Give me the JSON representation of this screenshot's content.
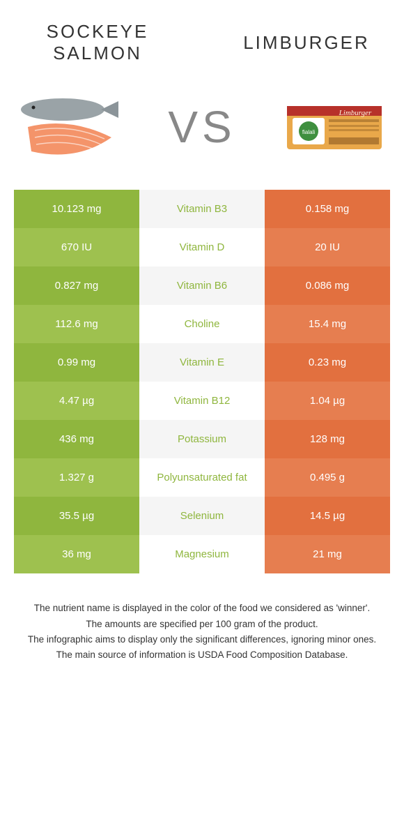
{
  "colors": {
    "left_a": "#8fb63e",
    "left_b": "#9ec14f",
    "mid_a": "#f5f5f5",
    "mid_b": "#ffffff",
    "right_a": "#e2703f",
    "right_b": "#e67e50",
    "nutrient_text_left": "#8fb63e",
    "nutrient_text_right": "#e2703f",
    "title_text": "#333333"
  },
  "header": {
    "left_title": "Sockeye salmon",
    "right_title": "Limburger",
    "vs": "VS"
  },
  "rows": [
    {
      "nutrient": "Vitamin B3",
      "left": "10.123 mg",
      "right": "0.158 mg",
      "winner": "left"
    },
    {
      "nutrient": "Vitamin D",
      "left": "670 IU",
      "right": "20 IU",
      "winner": "left"
    },
    {
      "nutrient": "Vitamin B6",
      "left": "0.827 mg",
      "right": "0.086 mg",
      "winner": "left"
    },
    {
      "nutrient": "Choline",
      "left": "112.6 mg",
      "right": "15.4 mg",
      "winner": "left"
    },
    {
      "nutrient": "Vitamin E",
      "left": "0.99 mg",
      "right": "0.23 mg",
      "winner": "left"
    },
    {
      "nutrient": "Vitamin B12",
      "left": "4.47 µg",
      "right": "1.04 µg",
      "winner": "left"
    },
    {
      "nutrient": "Potassium",
      "left": "436 mg",
      "right": "128 mg",
      "winner": "left"
    },
    {
      "nutrient": "Polyunsaturated fat",
      "left": "1.327 g",
      "right": "0.495 g",
      "winner": "left"
    },
    {
      "nutrient": "Selenium",
      "left": "35.5 µg",
      "right": "14.5 µg",
      "winner": "left"
    },
    {
      "nutrient": "Magnesium",
      "left": "36 mg",
      "right": "21 mg",
      "winner": "left"
    }
  ],
  "footer": {
    "line1": "The nutrient name is displayed in the color of the food we considered as 'winner'.",
    "line2": "The amounts are specified per 100 gram of the product.",
    "line3": "The infographic aims to display only the significant differences, ignoring minor ones.",
    "line4": "The main source of information is USDA Food Composition Database."
  }
}
